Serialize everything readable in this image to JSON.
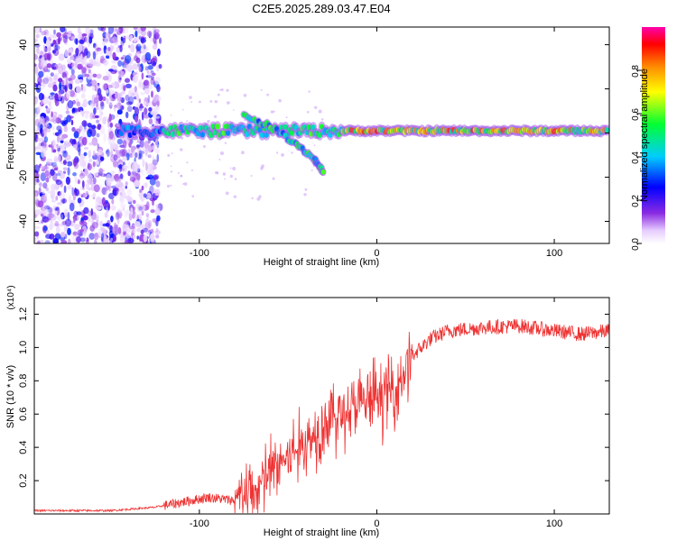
{
  "title": "C2E5.2025.289.03.47.E04",
  "colors": {
    "axis": "#000000",
    "snr_line": "#ee3333",
    "background_noise": "#8a3ef0"
  },
  "chart_data": [
    {
      "type": "heatmap",
      "title": "C2E5.2025.289.03.47.E04",
      "xlabel": "Height of straight line (km)",
      "ylabel": "Frequency (Hz)",
      "xlim": [
        -193,
        131
      ],
      "ylim": [
        -50,
        48
      ],
      "xticks": [
        -100,
        0,
        100
      ],
      "yticks": [
        -40,
        -20,
        0,
        20,
        40
      ],
      "colorbar": {
        "label": "Normalized spectral amplitude",
        "range": [
          0,
          1
        ],
        "ticks": [
          "0.0",
          "0.2",
          "0.4",
          "0.6",
          "0.8"
        ]
      },
      "ridge": {
        "main_band_hz": 1,
        "main_band_x_range": [
          -145,
          131
        ],
        "secondary_branch": [
          {
            "x": -75,
            "y": 8
          },
          {
            "x": -60,
            "y": 3
          },
          {
            "x": -45,
            "y": -5
          },
          {
            "x": -35,
            "y": -12
          },
          {
            "x": -30,
            "y": -18
          }
        ],
        "noise_x_range": [
          -193,
          -122
        ]
      }
    },
    {
      "type": "line",
      "xlabel": "Height of straight line (km)",
      "ylabel": "SNR (10 * v/v)",
      "y_multiplier": "(x10⁴)",
      "xlim": [
        -193,
        131
      ],
      "ylim": [
        0,
        1.3
      ],
      "xticks": [
        -100,
        0,
        100
      ],
      "yticks": [
        "0.2",
        "0.4",
        "0.6",
        "0.8",
        "1.0",
        "1.2"
      ],
      "series": [
        {
          "name": "SNR",
          "x": [
            -193,
            -150,
            -125,
            -110,
            -95,
            -80,
            -70,
            -60,
            -50,
            -40,
            -30,
            -20,
            -10,
            0,
            10,
            20,
            30,
            40,
            60,
            80,
            100,
            115,
            131
          ],
          "y": [
            0.02,
            0.02,
            0.04,
            0.07,
            0.1,
            0.08,
            0.12,
            0.25,
            0.35,
            0.42,
            0.55,
            0.6,
            0.65,
            0.7,
            0.75,
            0.95,
            1.05,
            1.1,
            1.12,
            1.13,
            1.1,
            1.08,
            1.1
          ]
        }
      ]
    }
  ]
}
